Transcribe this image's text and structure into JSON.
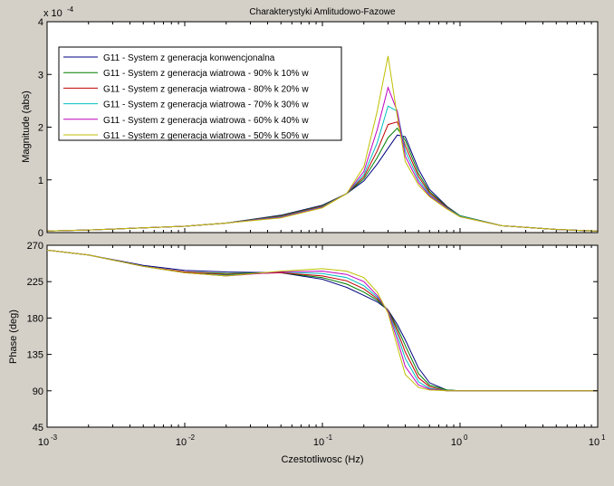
{
  "window": {
    "background": "#d4d0c8"
  },
  "chart_data": [
    {
      "type": "line",
      "title": "Charakterystyki Amlitudowo-Fazowe",
      "xlabel": "",
      "ylabel": "Magnitude (abs)",
      "xscale": "log",
      "xlim": [
        0.001,
        10
      ],
      "ylim": [
        0,
        4
      ],
      "y_exponent_label": "x 10",
      "y_exponent": "-4",
      "y_ticks": [
        "0",
        "1",
        "2",
        "3",
        "4"
      ],
      "grid": false,
      "legend_position": "top-left",
      "x": [
        0.001,
        0.002,
        0.005,
        0.01,
        0.02,
        0.05,
        0.1,
        0.15,
        0.2,
        0.25,
        0.3,
        0.35,
        0.4,
        0.5,
        0.6,
        0.8,
        1,
        2,
        5,
        10
      ],
      "series": [
        {
          "name": "G11 - System z generacja konwencjonalna",
          "color": "#00007f",
          "values": [
            0.03,
            0.05,
            0.09,
            0.12,
            0.18,
            0.33,
            0.52,
            0.74,
            0.98,
            1.3,
            1.6,
            1.85,
            1.82,
            1.2,
            0.82,
            0.5,
            0.32,
            0.13,
            0.06,
            0.03
          ]
        },
        {
          "name": "G11 - System z generacja wiatrowa - 90% k 10% w",
          "color": "#007f00",
          "values": [
            0.03,
            0.05,
            0.09,
            0.12,
            0.18,
            0.32,
            0.51,
            0.74,
            1.02,
            1.42,
            1.8,
            1.98,
            1.75,
            1.12,
            0.78,
            0.49,
            0.32,
            0.13,
            0.06,
            0.03
          ]
        },
        {
          "name": "G11 - System z generacja wiatrowa - 80% k 20% w",
          "color": "#bf0000",
          "values": [
            0.03,
            0.05,
            0.09,
            0.12,
            0.18,
            0.31,
            0.5,
            0.74,
            1.06,
            1.55,
            2.05,
            2.1,
            1.65,
            1.06,
            0.75,
            0.48,
            0.31,
            0.13,
            0.06,
            0.03
          ]
        },
        {
          "name": "G11 - System z generacja wiatrowa - 70% k 30% w",
          "color": "#00bfbf",
          "values": [
            0.03,
            0.05,
            0.09,
            0.12,
            0.18,
            0.3,
            0.49,
            0.74,
            1.1,
            1.7,
            2.4,
            2.3,
            1.55,
            1.0,
            0.72,
            0.47,
            0.31,
            0.13,
            0.06,
            0.03
          ]
        },
        {
          "name": "G11 - System z generacja wiatrowa - 60% k 40% w",
          "color": "#bf00bf",
          "values": [
            0.03,
            0.05,
            0.09,
            0.12,
            0.18,
            0.29,
            0.48,
            0.74,
            1.16,
            1.95,
            2.75,
            2.3,
            1.45,
            0.95,
            0.7,
            0.46,
            0.3,
            0.13,
            0.06,
            0.03
          ]
        },
        {
          "name": "G11 - System z generacja wiatrowa - 50% k 50% w",
          "color": "#bfbf00",
          "values": [
            0.03,
            0.05,
            0.09,
            0.12,
            0.18,
            0.28,
            0.47,
            0.74,
            1.25,
            2.3,
            3.35,
            2.2,
            1.35,
            0.9,
            0.68,
            0.45,
            0.3,
            0.13,
            0.06,
            0.03
          ]
        }
      ]
    },
    {
      "type": "line",
      "title": "",
      "xlabel": "Czestotliwosc  (Hz)",
      "ylabel": "Phase (deg)",
      "xscale": "log",
      "xlim": [
        0.001,
        10
      ],
      "ylim": [
        45,
        270
      ],
      "y_ticks": [
        "45",
        "90",
        "135",
        "180",
        "225",
        "270"
      ],
      "x_ticks": [
        "10^-3",
        "10^-2",
        "10^-1",
        "10^0",
        "10^1"
      ],
      "grid": false,
      "x": [
        0.001,
        0.002,
        0.005,
        0.01,
        0.02,
        0.05,
        0.1,
        0.15,
        0.2,
        0.25,
        0.3,
        0.35,
        0.4,
        0.5,
        0.6,
        0.8,
        1,
        2,
        5,
        10
      ],
      "series": [
        {
          "name": "G11 - System z generacja konwencjonalna",
          "color": "#00007f",
          "values": [
            264,
            258,
            245,
            239,
            237,
            236,
            228,
            218,
            208,
            200,
            190,
            172,
            153,
            118,
            100,
            91,
            90,
            90,
            90,
            90
          ]
        },
        {
          "name": "G11 - System z generacja wiatrowa - 90% k 10% w",
          "color": "#007f00",
          "values": [
            264,
            258,
            244,
            237,
            235,
            236,
            230,
            222,
            212,
            202,
            190,
            168,
            146,
            111,
            97,
            91,
            90,
            90,
            90,
            90
          ]
        },
        {
          "name": "G11 - System z generacja wiatrowa - 80% k 20% w",
          "color": "#bf0000",
          "values": [
            264,
            258,
            244,
            237,
            234,
            236,
            232,
            226,
            216,
            204,
            190,
            164,
            138,
            106,
            95,
            90,
            90,
            90,
            90,
            90
          ]
        },
        {
          "name": "G11 - System z generacja wiatrowa - 70% k 30% w",
          "color": "#00bfbf",
          "values": [
            264,
            258,
            244,
            236,
            233,
            237,
            235,
            230,
            220,
            206,
            189,
            159,
            130,
            101,
            93,
            90,
            90,
            90,
            90,
            90
          ]
        },
        {
          "name": "G11 - System z generacja wiatrowa - 60% k 40% w",
          "color": "#bf00bf",
          "values": [
            264,
            258,
            244,
            236,
            232,
            237,
            238,
            234,
            225,
            208,
            188,
            153,
            120,
            97,
            92,
            90,
            90,
            90,
            90,
            90
          ]
        },
        {
          "name": "G11 - System z generacja wiatrowa - 50% k 50% w",
          "color": "#bfbf00",
          "values": [
            264,
            258,
            244,
            236,
            232,
            238,
            241,
            238,
            230,
            212,
            186,
            145,
            110,
            94,
            91,
            90,
            90,
            90,
            90,
            90
          ]
        }
      ]
    }
  ]
}
